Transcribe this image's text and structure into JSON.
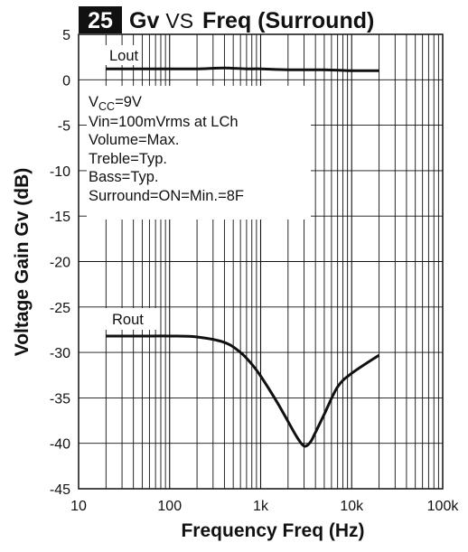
{
  "chart_data": {
    "type": "line",
    "figure_number": "25",
    "title_parts": [
      "Gv",
      "VS",
      "Freq (Surround)"
    ],
    "xlabel": "Frequency Freq (Hz)",
    "ylabel": "Voltage Gain Gv (dB)",
    "x_scale": "log",
    "xlim": [
      10,
      100000
    ],
    "ylim": [
      -45,
      5
    ],
    "x_ticks": [
      10,
      100,
      1000,
      10000,
      100000
    ],
    "x_tick_labels": [
      "10",
      "100",
      "1k",
      "10k",
      "100k"
    ],
    "y_ticks": [
      5,
      0,
      -5,
      -10,
      -15,
      -20,
      -25,
      -30,
      -35,
      -40,
      -45
    ],
    "y_tick_labels": [
      "5",
      "0",
      "-5",
      "-10",
      "-15",
      "-20",
      "-25",
      "-30",
      "-35",
      "-40",
      "-45"
    ],
    "grid": true,
    "conditions": {
      "vcc": {
        "prefix": "V",
        "sub": "CC",
        "suffix": "=9V"
      },
      "lines": [
        "Vin=100mVrms at LCh",
        "Volume=Max.",
        "Treble=Typ.",
        "Bass=Typ.",
        "Surround=ON=Min.=8F"
      ]
    },
    "series": [
      {
        "name": "Lout",
        "x": [
          20,
          50,
          100,
          200,
          400,
          700,
          1000,
          2000,
          5000,
          10000,
          20000
        ],
        "y": [
          1.2,
          1.2,
          1.2,
          1.2,
          1.3,
          1.2,
          1.2,
          1.1,
          1.1,
          1.0,
          1.0
        ]
      },
      {
        "name": "Rout",
        "x": [
          20,
          50,
          100,
          200,
          400,
          600,
          800,
          1000,
          1500,
          2000,
          2500,
          3000,
          3500,
          4000,
          5000,
          7000,
          10000,
          20000
        ],
        "y": [
          -28.2,
          -28.2,
          -28.2,
          -28.3,
          -28.9,
          -30.0,
          -31.3,
          -32.6,
          -35.4,
          -37.6,
          -39.3,
          -40.3,
          -39.9,
          -38.8,
          -36.8,
          -33.8,
          -32.3,
          -30.3
        ]
      }
    ]
  }
}
